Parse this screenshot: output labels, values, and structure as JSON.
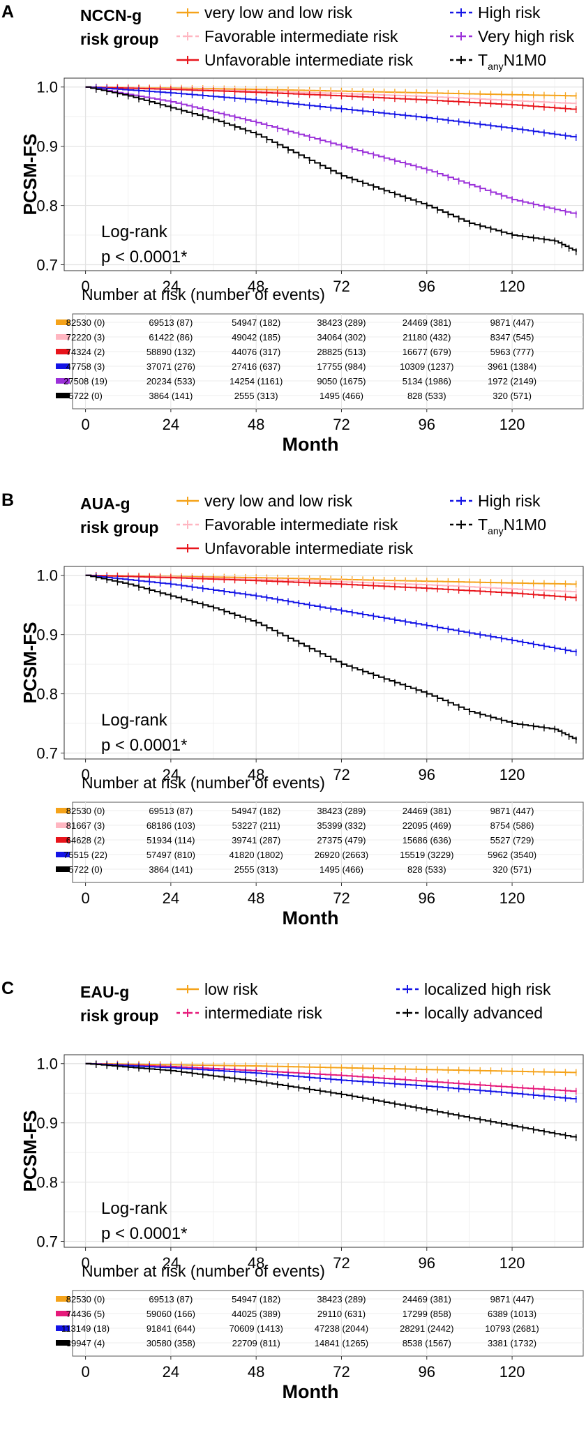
{
  "chart_data": [
    {
      "panel": "A",
      "type": "line",
      "subtype": "kaplan-meier",
      "group_title": [
        "NCCN-g",
        "risk group"
      ],
      "ylabel": "PCSM-FS",
      "xlabel": "Month",
      "ylim": [
        0.69,
        1.015
      ],
      "xlim": [
        -6,
        140
      ],
      "yticks": [
        "0.7",
        "0.8",
        "0.9",
        "1.0"
      ],
      "ytick_values": [
        0.7,
        0.8,
        0.9,
        1.0
      ],
      "xticks": [
        "0",
        "24",
        "48",
        "72",
        "96",
        "120"
      ],
      "xtick_values": [
        0,
        24,
        48,
        72,
        96,
        120
      ],
      "annotation": [
        "Log-rank",
        "p < 0.0001*"
      ],
      "risk_table_title": "Number at risk (number of events)",
      "series": [
        {
          "name": "very low and low risk",
          "color": "#F5A31A",
          "dashed": false,
          "x": [
            0,
            24,
            48,
            72,
            96,
            120,
            138
          ],
          "values": [
            1.0,
            0.998,
            0.996,
            0.993,
            0.99,
            0.987,
            0.985
          ],
          "risk": [
            "82530 (0)",
            "69513 (87)",
            "54947 (182)",
            "38423 (289)",
            "24469 (381)",
            "9871 (447)"
          ]
        },
        {
          "name": "Favorable intermediate risk",
          "color": "#FFB6C1",
          "dashed": true,
          "x": [
            0,
            24,
            48,
            72,
            96,
            120,
            138
          ],
          "values": [
            1.0,
            0.997,
            0.993,
            0.989,
            0.984,
            0.977,
            0.972
          ],
          "risk": [
            "72220 (3)",
            "61422 (86)",
            "49042 (185)",
            "34064 (302)",
            "21180 (432)",
            "8347 (545)"
          ]
        },
        {
          "name": "Unfavorable intermediate risk",
          "color": "#E8141B",
          "dashed": false,
          "x": [
            0,
            24,
            48,
            72,
            96,
            120,
            138
          ],
          "values": [
            1.0,
            0.996,
            0.991,
            0.985,
            0.978,
            0.97,
            0.962
          ],
          "risk": [
            "74324 (2)",
            "58890 (132)",
            "44076 (317)",
            "28825 (513)",
            "16677 (679)",
            "5963 (777)"
          ]
        },
        {
          "name": "High risk",
          "color": "#1414E6",
          "dashed": true,
          "x": [
            0,
            24,
            48,
            72,
            96,
            120,
            138
          ],
          "values": [
            1.0,
            0.99,
            0.978,
            0.963,
            0.948,
            0.93,
            0.915
          ],
          "risk": [
            "47758 (3)",
            "37071 (276)",
            "27416 (637)",
            "17755 (984)",
            "10309 (1237)",
            "3961 (1384)"
          ]
        },
        {
          "name": "Very high risk",
          "color": "#9B30D9",
          "dashed": true,
          "x": [
            0,
            24,
            48,
            72,
            96,
            120,
            138
          ],
          "values": [
            1.0,
            0.975,
            0.94,
            0.9,
            0.86,
            0.81,
            0.785
          ],
          "risk": [
            "27508 (19)",
            "20234 (533)",
            "14254 (1161)",
            "9050 (1675)",
            "5134 (1986)",
            "1972 (2149)"
          ]
        },
        {
          "name": "TanyN1M0",
          "color": "#000000",
          "dashed": true,
          "x": [
            0,
            12,
            24,
            36,
            48,
            60,
            72,
            84,
            96,
            108,
            120,
            132,
            138
          ],
          "values": [
            1.0,
            0.985,
            0.965,
            0.945,
            0.92,
            0.885,
            0.85,
            0.825,
            0.8,
            0.77,
            0.75,
            0.74,
            0.722
          ],
          "risk": [
            "5722 (0)",
            "3864 (141)",
            "2555 (313)",
            "1495 (466)",
            "828 (533)",
            "320 (571)"
          ]
        }
      ]
    },
    {
      "panel": "B",
      "type": "line",
      "subtype": "kaplan-meier",
      "group_title": [
        "AUA-g",
        "risk group"
      ],
      "ylabel": "PCSM-FS",
      "xlabel": "Month",
      "ylim": [
        0.69,
        1.015
      ],
      "xlim": [
        -6,
        140
      ],
      "yticks": [
        "0.7",
        "0.8",
        "0.9",
        "1.0"
      ],
      "ytick_values": [
        0.7,
        0.8,
        0.9,
        1.0
      ],
      "xticks": [
        "0",
        "24",
        "48",
        "72",
        "96",
        "120"
      ],
      "xtick_values": [
        0,
        24,
        48,
        72,
        96,
        120
      ],
      "annotation": [
        "Log-rank",
        "p < 0.0001*"
      ],
      "risk_table_title": "Number at risk (number of events)",
      "series": [
        {
          "name": "very low and low risk",
          "color": "#F5A31A",
          "dashed": false,
          "x": [
            0,
            24,
            48,
            72,
            96,
            120,
            138
          ],
          "values": [
            1.0,
            0.998,
            0.996,
            0.993,
            0.99,
            0.987,
            0.985
          ],
          "risk": [
            "82530 (0)",
            "69513 (87)",
            "54947 (182)",
            "38423 (289)",
            "24469 (381)",
            "9871 (447)"
          ]
        },
        {
          "name": "Favorable intermediate risk",
          "color": "#FFB6C1",
          "dashed": true,
          "x": [
            0,
            24,
            48,
            72,
            96,
            120,
            138
          ],
          "values": [
            1.0,
            0.997,
            0.993,
            0.989,
            0.984,
            0.977,
            0.972
          ],
          "risk": [
            "81667 (3)",
            "68186 (103)",
            "53227 (211)",
            "35399 (332)",
            "22095 (469)",
            "8754 (586)"
          ]
        },
        {
          "name": "Unfavorable intermediate risk",
          "color": "#E8141B",
          "dashed": false,
          "x": [
            0,
            24,
            48,
            72,
            96,
            120,
            138
          ],
          "values": [
            1.0,
            0.996,
            0.991,
            0.985,
            0.978,
            0.97,
            0.962
          ],
          "risk": [
            "64628 (2)",
            "51934 (114)",
            "39741 (287)",
            "27375 (479)",
            "15686 (636)",
            "5527 (729)"
          ]
        },
        {
          "name": "High risk",
          "color": "#1414E6",
          "dashed": true,
          "x": [
            0,
            24,
            48,
            72,
            96,
            120,
            138
          ],
          "values": [
            1.0,
            0.985,
            0.965,
            0.94,
            0.915,
            0.89,
            0.87
          ],
          "risk": [
            "75515 (22)",
            "57497 (810)",
            "41820 (1802)",
            "26920 (2663)",
            "15519 (3229)",
            "5962 (3540)"
          ]
        },
        {
          "name": "TanyN1M0",
          "color": "#000000",
          "dashed": true,
          "x": [
            0,
            12,
            24,
            36,
            48,
            60,
            72,
            84,
            96,
            108,
            120,
            132,
            138
          ],
          "values": [
            1.0,
            0.985,
            0.965,
            0.945,
            0.92,
            0.885,
            0.85,
            0.825,
            0.8,
            0.77,
            0.75,
            0.74,
            0.722
          ],
          "risk": [
            "5722 (0)",
            "3864 (141)",
            "2555 (313)",
            "1495 (466)",
            "828 (533)",
            "320 (571)"
          ]
        }
      ]
    },
    {
      "panel": "C",
      "type": "line",
      "subtype": "kaplan-meier",
      "group_title": [
        "EAU-g",
        "risk group"
      ],
      "ylabel": "PCSM-FS",
      "xlabel": "Month",
      "ylim": [
        0.69,
        1.015
      ],
      "xlim": [
        -6,
        140
      ],
      "yticks": [
        "0.7",
        "0.8",
        "0.9",
        "1.0"
      ],
      "ytick_values": [
        0.7,
        0.8,
        0.9,
        1.0
      ],
      "xticks": [
        "0",
        "24",
        "48",
        "72",
        "96",
        "120"
      ],
      "xtick_values": [
        0,
        24,
        48,
        72,
        96,
        120
      ],
      "annotation": [
        "Log-rank",
        "p < 0.0001*"
      ],
      "risk_table_title": "Number at risk (number of events)",
      "series": [
        {
          "name": "low risk",
          "color": "#F5A31A",
          "dashed": false,
          "x": [
            0,
            24,
            48,
            72,
            96,
            120,
            138
          ],
          "values": [
            1.0,
            0.998,
            0.996,
            0.993,
            0.99,
            0.987,
            0.985
          ],
          "risk": [
            "82530 (0)",
            "69513 (87)",
            "54947 (182)",
            "38423 (289)",
            "24469 (381)",
            "9871 (447)"
          ]
        },
        {
          "name": "intermediate risk",
          "color": "#E6197A",
          "dashed": true,
          "x": [
            0,
            24,
            48,
            72,
            96,
            120,
            138
          ],
          "values": [
            1.0,
            0.995,
            0.988,
            0.98,
            0.97,
            0.96,
            0.953
          ],
          "risk": [
            "74436 (5)",
            "59060 (166)",
            "44025 (389)",
            "29110 (631)",
            "17299 (858)",
            "6389 (1013)"
          ]
        },
        {
          "name": "localized high risk",
          "color": "#1414E6",
          "dashed": true,
          "x": [
            0,
            24,
            48,
            72,
            96,
            120,
            138
          ],
          "values": [
            1.0,
            0.993,
            0.984,
            0.972,
            0.962,
            0.95,
            0.94
          ],
          "risk": [
            "113149 (18)",
            "91841 (644)",
            "70609 (1413)",
            "47238 (2044)",
            "28291 (2442)",
            "10793 (2681)"
          ]
        },
        {
          "name": "locally advanced",
          "color": "#000000",
          "dashed": true,
          "x": [
            0,
            24,
            48,
            72,
            96,
            120,
            138
          ],
          "values": [
            1.0,
            0.988,
            0.97,
            0.948,
            0.922,
            0.895,
            0.875
          ],
          "risk": [
            "39947 (4)",
            "30580 (358)",
            "22709 (811)",
            "14841 (1265)",
            "8538 (1567)",
            "3381 (1732)"
          ]
        }
      ]
    }
  ]
}
